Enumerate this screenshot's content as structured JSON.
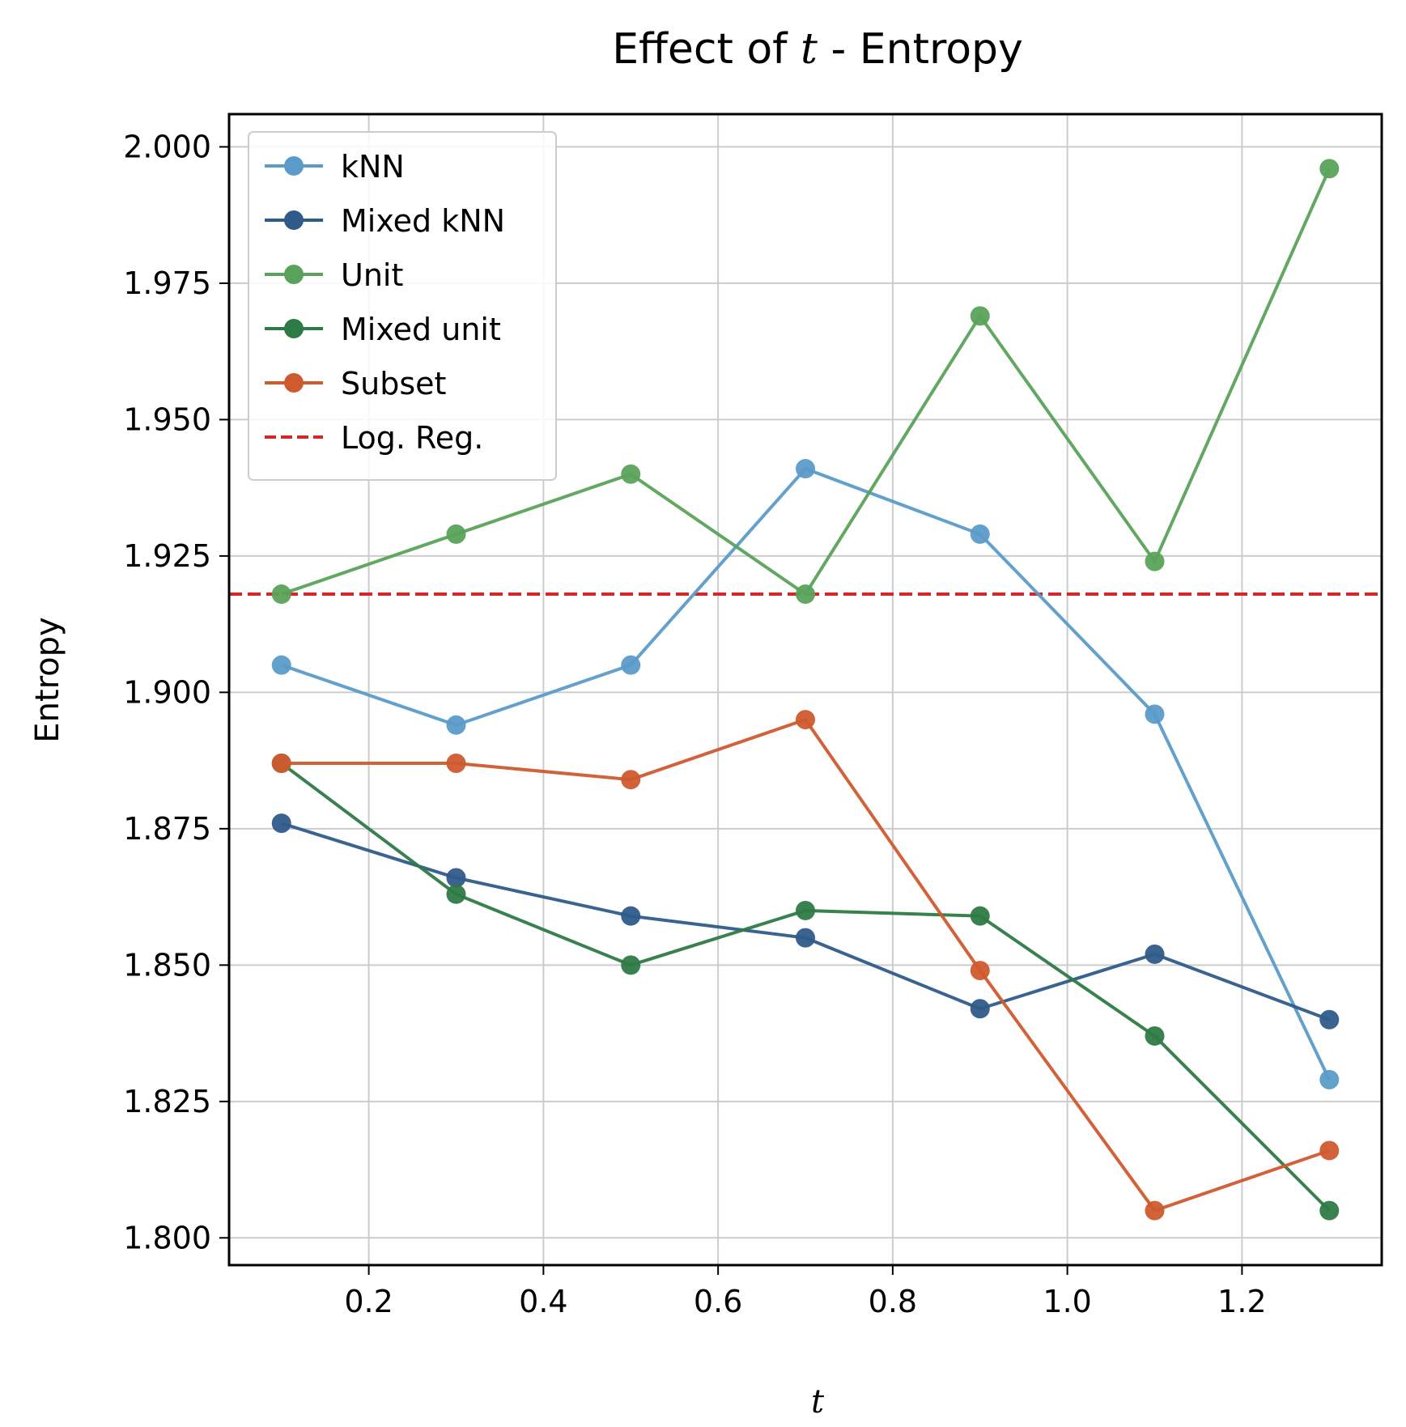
{
  "chart_data": {
    "type": "line",
    "title": {
      "prefix": "Effect of ",
      "italic": "t",
      "suffix": " - Entropy"
    },
    "xlabel": "t",
    "ylabel": "Entropy",
    "xlim": [
      0.04,
      1.36
    ],
    "ylim": [
      1.795,
      2.006
    ],
    "x_ticks": [
      0.2,
      0.4,
      0.6,
      0.8,
      1.0,
      1.2
    ],
    "x_tick_labels": [
      "0.2",
      "0.4",
      "0.6",
      "0.8",
      "1.0",
      "1.2"
    ],
    "y_ticks": [
      1.8,
      1.825,
      1.85,
      1.875,
      1.9,
      1.925,
      1.95,
      1.975,
      2.0
    ],
    "y_tick_labels": [
      "1.800",
      "1.825",
      "1.850",
      "1.875",
      "1.900",
      "1.925",
      "1.950",
      "1.975",
      "2.000"
    ],
    "grid": true,
    "legend_position": "top-left",
    "x": [
      0.1,
      0.3,
      0.5,
      0.7,
      0.9,
      1.1,
      1.3
    ],
    "series": [
      {
        "name": "kNN",
        "color": "#5b9bc9",
        "values": [
          1.905,
          1.894,
          1.905,
          1.941,
          1.929,
          1.896,
          1.829
        ]
      },
      {
        "name": "Mixed kNN",
        "color": "#2f5b8a",
        "values": [
          1.876,
          1.866,
          1.859,
          1.855,
          1.842,
          1.852,
          1.84
        ]
      },
      {
        "name": "Unit",
        "color": "#5aa25a",
        "values": [
          1.918,
          1.929,
          1.94,
          1.918,
          1.969,
          1.924,
          1.996
        ]
      },
      {
        "name": "Mixed unit",
        "color": "#2e7a45",
        "values": [
          1.887,
          1.863,
          1.85,
          1.86,
          1.859,
          1.837,
          1.805
        ]
      },
      {
        "name": "Subset",
        "color": "#cf5a2e",
        "values": [
          1.887,
          1.887,
          1.884,
          1.895,
          1.849,
          1.805,
          1.816
        ]
      }
    ],
    "reference_line": {
      "name": "Log. Reg.",
      "color": "#d62728",
      "value": 1.918,
      "style": "dashed"
    }
  }
}
